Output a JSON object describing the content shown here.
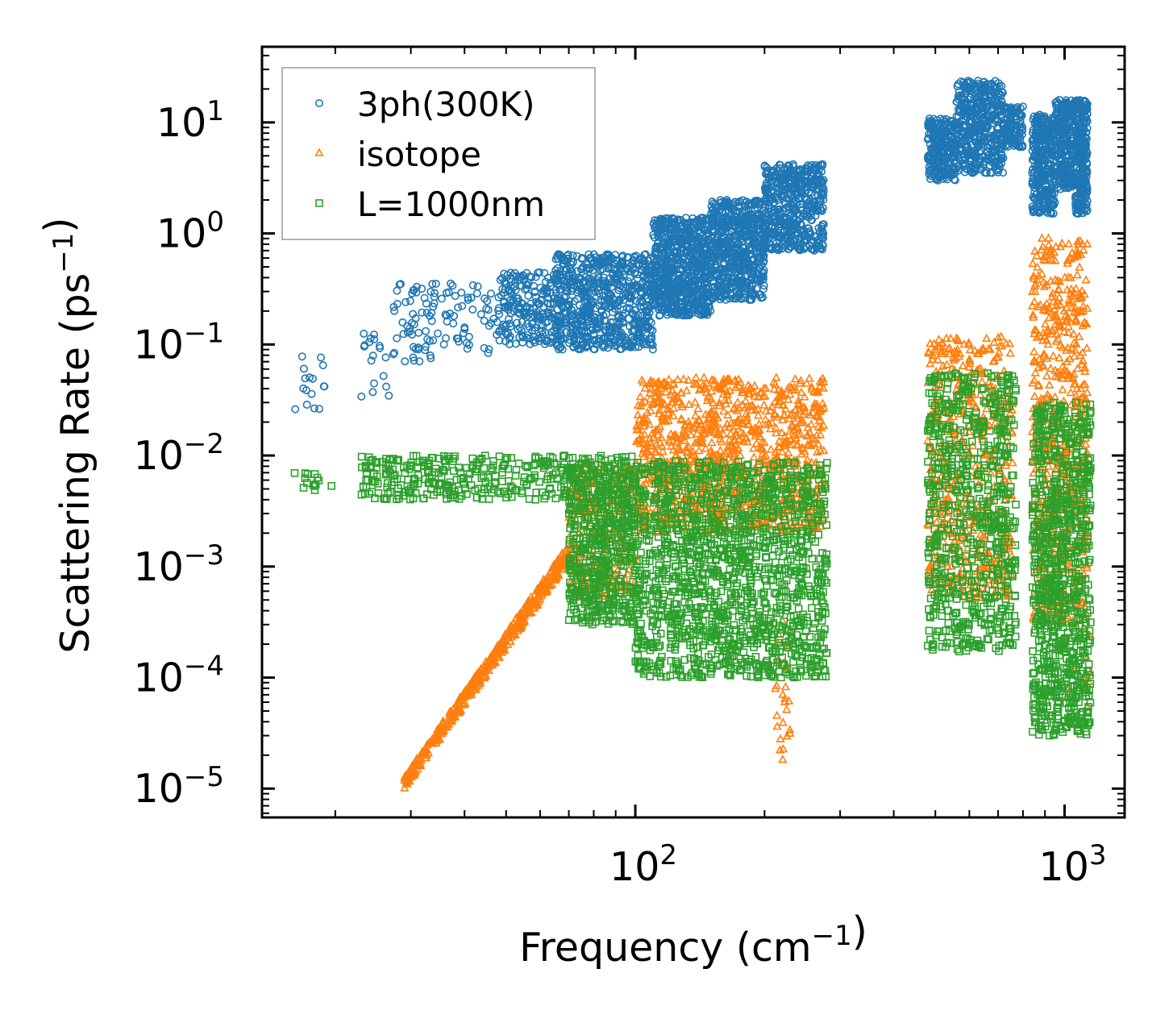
{
  "chart_data": {
    "type": "scatter",
    "title": "",
    "xlabel": "Frequency (cm⁻¹)",
    "ylabel": "Scattering Rate (ps⁻¹)",
    "xscale": "log",
    "yscale": "log",
    "xlim": [
      13.5,
      1380
    ],
    "ylim": [
      5.5e-06,
      48
    ],
    "grid": false,
    "legend_position": "top-left",
    "x_ticks": [
      {
        "value": 100,
        "base": "10",
        "exp": "2"
      },
      {
        "value": 1000,
        "base": "10",
        "exp": "3"
      }
    ],
    "y_ticks": [
      {
        "value": 10,
        "base": "10",
        "exp": "1"
      },
      {
        "value": 1,
        "base": "10",
        "exp": "0"
      },
      {
        "value": 0.1,
        "base": "10",
        "exp": "−1"
      },
      {
        "value": 0.01,
        "base": "10",
        "exp": "−2"
      },
      {
        "value": 0.001,
        "base": "10",
        "exp": "−3"
      },
      {
        "value": 0.0001,
        "base": "10",
        "exp": "−4"
      },
      {
        "value": 1e-05,
        "base": "10",
        "exp": "−5"
      }
    ],
    "series": [
      {
        "name": "3ph(300K)",
        "marker": "circle",
        "color": "#1f77b4",
        "bands": [
          {
            "x_from": 16,
            "x_to": 19,
            "lo": 0.022,
            "hi": 0.08,
            "n": 16
          },
          {
            "x_from": 23,
            "x_to": 27,
            "lo": 0.03,
            "hi": 0.14,
            "n": 18
          },
          {
            "x_from": 27,
            "x_to": 48,
            "lo": 0.07,
            "hi": 0.36,
            "n": 110
          },
          {
            "x_from": 48,
            "x_to": 65,
            "lo": 0.1,
            "hi": 0.45,
            "n": 200
          },
          {
            "x_from": 65,
            "x_to": 110,
            "lo": 0.09,
            "hi": 0.65,
            "n": 700
          },
          {
            "x_from": 110,
            "x_to": 150,
            "lo": 0.18,
            "hi": 1.4,
            "n": 700
          },
          {
            "x_from": 150,
            "x_to": 200,
            "lo": 0.25,
            "hi": 2.0,
            "n": 600
          },
          {
            "x_from": 200,
            "x_to": 275,
            "lo": 0.7,
            "hi": 4.2,
            "n": 500
          },
          {
            "x_from": 480,
            "x_to": 560,
            "lo": 3.0,
            "hi": 11,
            "n": 250
          },
          {
            "x_from": 560,
            "x_to": 720,
            "lo": 3.5,
            "hi": 24,
            "n": 450
          },
          {
            "x_from": 720,
            "x_to": 800,
            "lo": 6.0,
            "hi": 14,
            "n": 120
          },
          {
            "x_from": 840,
            "x_to": 950,
            "lo": 1.5,
            "hi": 12,
            "n": 300
          },
          {
            "x_from": 950,
            "x_to": 1060,
            "lo": 2.5,
            "hi": 16,
            "n": 250
          },
          {
            "x_from": 1060,
            "x_to": 1130,
            "lo": 1.5,
            "hi": 16,
            "n": 280
          }
        ]
      },
      {
        "name": "isotope",
        "marker": "triangle",
        "color": "#ff7f0e",
        "bands": [
          {
            "x_from": 29,
            "x_to": 70,
            "lo_at_start": 1e-05,
            "hi_at_start": 1.3e-05,
            "lo_at_end": 0.0011,
            "hi_at_end": 0.0016,
            "n": 450
          },
          {
            "x_from": 70,
            "x_to": 100,
            "lo": 0.0005,
            "hi": 0.008,
            "n": 300
          },
          {
            "x_from": 100,
            "x_to": 275,
            "lo": 0.002,
            "hi": 0.05,
            "n": 1100
          },
          {
            "x_from": 210,
            "x_to": 230,
            "lo": 1.7e-05,
            "hi": 0.0005,
            "n": 30
          },
          {
            "x_from": 480,
            "x_to": 760,
            "lo": 0.0005,
            "hi": 0.12,
            "n": 500
          },
          {
            "x_from": 840,
            "x_to": 1130,
            "lo": 0.0003,
            "hi": 0.9,
            "n": 600
          },
          {
            "x_from": 1000,
            "x_to": 1150,
            "lo": 3e-05,
            "hi": 0.0003,
            "n": 20
          }
        ]
      },
      {
        "name": "L=1000nm",
        "marker": "square",
        "color": "#2ca02c",
        "bands": [
          {
            "x_from": 16,
            "x_to": 20,
            "lo": 0.0045,
            "hi": 0.007,
            "n": 14
          },
          {
            "x_from": 23,
            "x_to": 70,
            "lo": 0.004,
            "hi": 0.01,
            "n": 300
          },
          {
            "x_from": 70,
            "x_to": 100,
            "lo": 0.0003,
            "hi": 0.01,
            "n": 600
          },
          {
            "x_from": 100,
            "x_to": 280,
            "lo": 0.0001,
            "hi": 0.009,
            "n": 1500
          },
          {
            "x_from": 480,
            "x_to": 770,
            "lo": 0.00017,
            "hi": 0.055,
            "n": 700
          },
          {
            "x_from": 840,
            "x_to": 1150,
            "lo": 3e-05,
            "hi": 0.03,
            "n": 900
          }
        ]
      }
    ]
  }
}
